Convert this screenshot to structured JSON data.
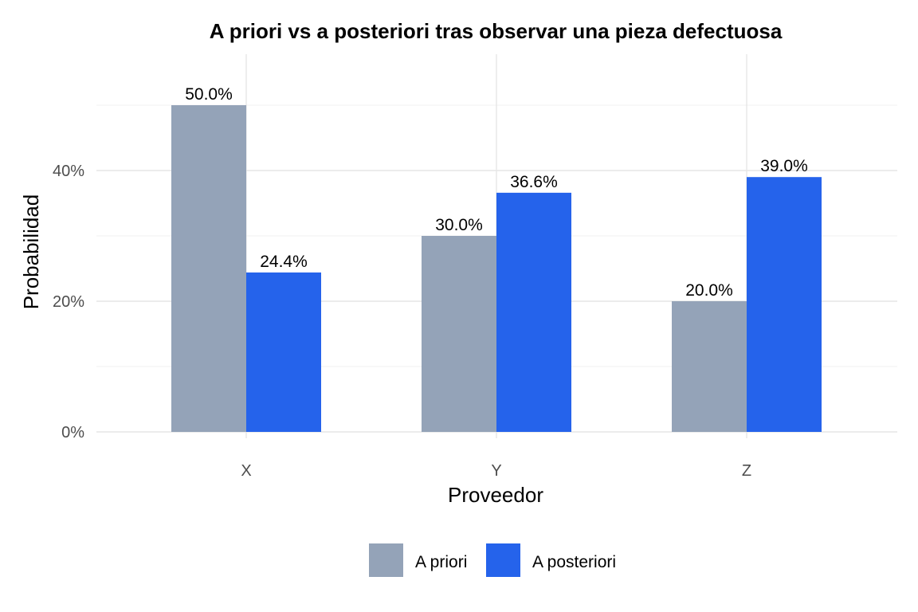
{
  "chart_data": {
    "type": "bar",
    "title": "A priori vs a posteriori tras observar una pieza defectuosa",
    "xlabel": "Proveedor",
    "ylabel": "Probabilidad",
    "categories": [
      "X",
      "Y",
      "Z"
    ],
    "series": [
      {
        "name": "A priori",
        "values": [
          0.5,
          0.3,
          0.2
        ],
        "labels": [
          "50.0%",
          "30.0%",
          "20.0%"
        ],
        "color": "#94A3B8"
      },
      {
        "name": "A posteriori",
        "values": [
          0.244,
          0.366,
          0.39
        ],
        "labels": [
          "24.4%",
          "36.6%",
          "39.0%"
        ],
        "color": "#2563EB"
      }
    ],
    "ylim": [
      0,
      0.5
    ],
    "y_ticks": [
      0,
      0.2,
      0.4
    ],
    "y_tick_labels": [
      "0%",
      "20%",
      "40%"
    ],
    "grid": true,
    "legend_position": "bottom"
  }
}
